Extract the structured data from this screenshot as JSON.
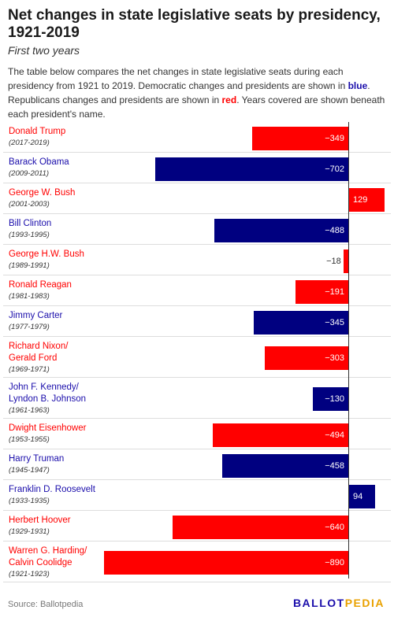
{
  "header": {
    "title": "Net changes in state legislative seats by presidency, 1921-2019",
    "subtitle": "First two years",
    "description": {
      "before_blue": "The table below compares the net changes in state legislative seats during each presidency from 1921 to 2019. Democratic changes and presidents are shown in ",
      "blue_word": "blue",
      "between": ". Republicans changes and presidents are shown in ",
      "red_word": "red",
      "after_red": ". Years covered are shown beneath each president's name."
    }
  },
  "colors": {
    "democrat": "#000080",
    "republican": "#ff0000",
    "democrat_text": "#1a0dab",
    "republican_text": "#ff0000"
  },
  "chart_data": {
    "type": "bar",
    "orientation": "horizontal",
    "categories": [
      "Donald Trump",
      "Barack Obama",
      "George W. Bush",
      "Bill Clinton",
      "George H.W. Bush",
      "Ronald Reagan",
      "Jimmy Carter",
      "Richard Nixon/ Gerald Ford",
      "John F. Kennedy/ Lyndon B. Johnson",
      "Dwight Eisenhower",
      "Harry Truman",
      "Franklin D. Roosevelt",
      "Herbert Hoover",
      "Warren G. Harding/ Calvin Coolidge"
    ],
    "values": [
      -349,
      -702,
      129,
      -488,
      -18,
      -191,
      -345,
      -303,
      -130,
      -494,
      -458,
      94,
      -640,
      -890
    ],
    "rows": [
      {
        "name_lines": [
          "Donald Trump"
        ],
        "years": "(2017-2019)",
        "party": "republican",
        "value": -349,
        "label": "−349"
      },
      {
        "name_lines": [
          "Barack Obama"
        ],
        "years": "(2009-2011)",
        "party": "democrat",
        "value": -702,
        "label": "−702"
      },
      {
        "name_lines": [
          "George W. Bush"
        ],
        "years": "(2001-2003)",
        "party": "republican",
        "value": 129,
        "label": "129"
      },
      {
        "name_lines": [
          "Bill Clinton"
        ],
        "years": "(1993-1995)",
        "party": "democrat",
        "value": -488,
        "label": "−488"
      },
      {
        "name_lines": [
          "George H.W. Bush"
        ],
        "years": "(1989-1991)",
        "party": "republican",
        "value": -18,
        "label": "−18"
      },
      {
        "name_lines": [
          "Ronald Reagan"
        ],
        "years": "(1981-1983)",
        "party": "republican",
        "value": -191,
        "label": "−191"
      },
      {
        "name_lines": [
          "Jimmy Carter"
        ],
        "years": "(1977-1979)",
        "party": "democrat",
        "value": -345,
        "label": "−345"
      },
      {
        "name_lines": [
          "Richard Nixon/",
          "Gerald Ford"
        ],
        "years": "(1969-1971)",
        "party": "republican",
        "value": -303,
        "label": "−303"
      },
      {
        "name_lines": [
          "John F. Kennedy/",
          "Lyndon B. Johnson"
        ],
        "years": "(1961-1963)",
        "party": "democrat",
        "value": -130,
        "label": "−130"
      },
      {
        "name_lines": [
          "Dwight Eisenhower"
        ],
        "years": "(1953-1955)",
        "party": "republican",
        "value": -494,
        "label": "−494"
      },
      {
        "name_lines": [
          "Harry Truman"
        ],
        "years": "(1945-1947)",
        "party": "democrat",
        "value": -458,
        "label": "−458"
      },
      {
        "name_lines": [
          "Franklin D. Roosevelt"
        ],
        "years": "(1933-1935)",
        "party": "democrat",
        "value": 94,
        "label": "94"
      },
      {
        "name_lines": [
          "Herbert Hoover"
        ],
        "years": "(1929-1931)",
        "party": "republican",
        "value": -640,
        "label": "−640"
      },
      {
        "name_lines": [
          "Warren G. Harding/",
          "Calvin Coolidge"
        ],
        "years": "(1921-1923)",
        "party": "republican",
        "value": -890,
        "label": "−890"
      }
    ],
    "title": "Net changes in state legislative seats by presidency, 1921-2019",
    "subtitle": "First two years",
    "xlim": [
      -890,
      129
    ],
    "grid": false
  },
  "footer": {
    "source": "Source: Ballotpedia",
    "logo_part1": "BALLOT",
    "logo_part2": "PEDIA"
  }
}
